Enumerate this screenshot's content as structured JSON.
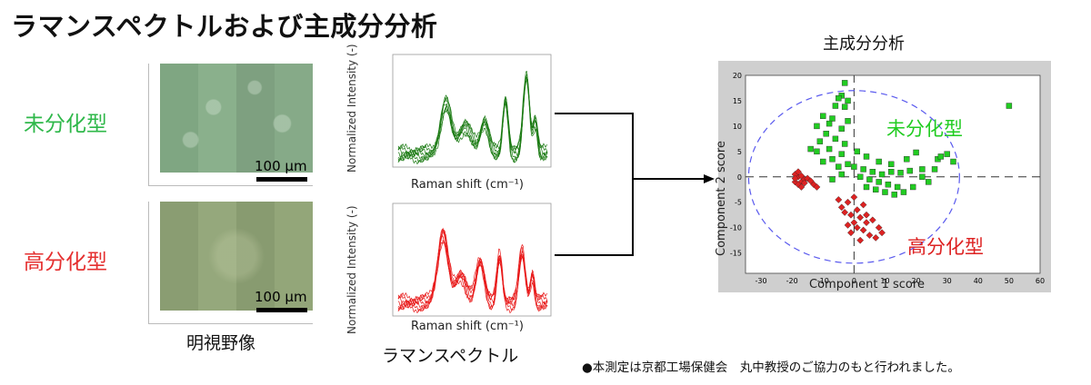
{
  "title": "ラマンスペクトルおよび主成分分析",
  "labels": {
    "undiff": "未分化型",
    "highdiff": "高分化型"
  },
  "microscopy": {
    "caption": "明視野像",
    "scale_top": "100 μm",
    "scale_bottom": "100 μm"
  },
  "spectra": {
    "caption": "ラマンスペクトル",
    "ylabel": "Normalized Intensity (-)",
    "xlabel": "Raman shift (cm⁻¹)",
    "green_color": "#1a7a12",
    "red_color": "#e81818"
  },
  "pca": {
    "title": "主成分分析",
    "xlabel": "Component 1 score",
    "ylabel": "Component 2 score",
    "annotation_green": "未分化型",
    "annotation_red": "高分化型",
    "green_color": "#22cc22",
    "red_color": "#dd2222",
    "ellipse_color": "#5a5aee"
  },
  "chart_data": {
    "type": "scatter",
    "xlabel": "Component 1 score",
    "ylabel": "Component 2 score",
    "xlim": [
      -35,
      60
    ],
    "ylim": [
      -19,
      20
    ],
    "xticks": [
      -30,
      -20,
      -10,
      0,
      10,
      20,
      30,
      40,
      50,
      60
    ],
    "yticks": [
      -15,
      -10,
      -5,
      0,
      5,
      10,
      15,
      20
    ],
    "series": [
      {
        "marker": "square",
        "color": "#22cc22",
        "points": [
          [
            -3,
            18.5
          ],
          [
            -4,
            16
          ],
          [
            -5,
            15.5
          ],
          [
            -2,
            15
          ],
          [
            -6,
            14
          ],
          [
            -3,
            13.8
          ],
          [
            -10,
            12
          ],
          [
            -7,
            11.5
          ],
          [
            -2,
            11
          ],
          [
            -8,
            10.5
          ],
          [
            -12,
            10
          ],
          [
            -4,
            9.5
          ],
          [
            -9,
            8.5
          ],
          [
            -6,
            7.5
          ],
          [
            -11,
            7
          ],
          [
            -3,
            6.5
          ],
          [
            -8,
            5.5
          ],
          [
            -12,
            5
          ],
          [
            -4,
            4.5
          ],
          [
            -14,
            5.5
          ],
          [
            -7,
            3.5
          ],
          [
            -10,
            3
          ],
          [
            -2,
            2.5
          ],
          [
            -5,
            2
          ],
          [
            0,
            2
          ],
          [
            3,
            1.5
          ],
          [
            6,
            1
          ],
          [
            9,
            0.5
          ],
          [
            12,
            1
          ],
          [
            15,
            0.8
          ],
          [
            18,
            1.2
          ],
          [
            22,
            1.5
          ],
          [
            27,
            3.5
          ],
          [
            2,
            0
          ],
          [
            5,
            -0.5
          ],
          [
            8,
            -1
          ],
          [
            11,
            -1.5
          ],
          [
            14,
            -2
          ],
          [
            4,
            -2
          ],
          [
            7,
            -2.5
          ],
          [
            10,
            -3
          ],
          [
            13,
            -3.5
          ],
          [
            16,
            -3
          ],
          [
            19,
            -2
          ],
          [
            22,
            0
          ],
          [
            24,
            -1
          ],
          [
            26,
            1.5
          ],
          [
            28,
            4
          ],
          [
            30,
            4.5
          ],
          [
            32,
            3
          ],
          [
            -4,
            0.5
          ],
          [
            -7,
            -0.5
          ],
          [
            1,
            5
          ],
          [
            4,
            4
          ],
          [
            8,
            3
          ],
          [
            12,
            2.5
          ],
          [
            17,
            3.5
          ],
          [
            20,
            4.8
          ],
          [
            50,
            14
          ]
        ]
      },
      {
        "marker": "diamond",
        "color": "#dd2222",
        "points": [
          [
            -18,
            0
          ],
          [
            -17,
            -1
          ],
          [
            -19,
            0.5
          ],
          [
            -18,
            1
          ],
          [
            -17,
            0.2
          ],
          [
            -16,
            -0.5
          ],
          [
            -19,
            -1
          ],
          [
            -18,
            -1.5
          ],
          [
            -17,
            -2
          ],
          [
            -16,
            -1.2
          ],
          [
            -15,
            -0.3
          ],
          [
            -14,
            -0.8
          ],
          [
            -19,
            -0.3
          ],
          [
            -13,
            -1.5
          ],
          [
            -12,
            -2
          ],
          [
            0,
            -4
          ],
          [
            -2,
            -5
          ],
          [
            3,
            -5.5
          ],
          [
            -4,
            -6
          ],
          [
            1,
            -6.5
          ],
          [
            -1,
            -7.5
          ],
          [
            2,
            -8
          ],
          [
            -3,
            -7
          ],
          [
            4,
            -7.5
          ],
          [
            0,
            -9
          ],
          [
            -2,
            -9.5
          ],
          [
            1,
            -10
          ],
          [
            3,
            -10.5
          ],
          [
            -1,
            -11
          ],
          [
            5,
            -11.5
          ],
          [
            7,
            -12
          ],
          [
            2,
            -12.5
          ],
          [
            4,
            -9
          ],
          [
            6,
            -8.5
          ],
          [
            8,
            -10
          ],
          [
            9,
            -11
          ],
          [
            -5,
            -4.5
          ]
        ]
      }
    ]
  }
}
